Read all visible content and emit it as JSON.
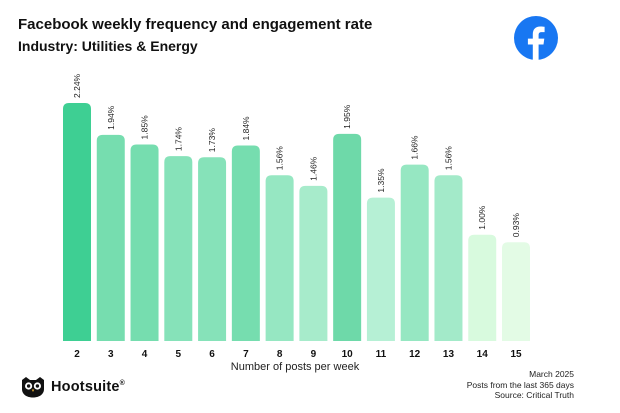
{
  "header": {
    "title": "Facebook weekly frequency and engagement rate",
    "subtitle": "Industry: Utilities & Energy",
    "logo_icon": "facebook-logo-icon",
    "logo_color": "#1877F2"
  },
  "chart_data": {
    "type": "bar",
    "title": "Facebook weekly frequency and engagement rate",
    "subtitle": "Industry: Utilities & Energy",
    "xlabel": "Number of posts per week",
    "ylabel": "",
    "categories": [
      "2",
      "3",
      "4",
      "5",
      "6",
      "7",
      "8",
      "9",
      "10",
      "11",
      "12",
      "13",
      "14",
      "15"
    ],
    "values": [
      2.24,
      1.94,
      1.85,
      1.74,
      1.73,
      1.84,
      1.56,
      1.46,
      1.95,
      1.35,
      1.66,
      1.56,
      1.0,
      0.93
    ],
    "labels": [
      "2.24%",
      "1.94%",
      "1.85%",
      "1.74%",
      "1.73%",
      "1.84%",
      "1.56%",
      "1.46%",
      "1.95%",
      "1.35%",
      "1.66%",
      "1.56%",
      "1.00%",
      "0.93%"
    ],
    "ylim": [
      0,
      2.24
    ],
    "grid": false,
    "colors": [
      "#3ECF93",
      "#76DDAF",
      "#76DDAF",
      "#86E2B9",
      "#86E2B9",
      "#76DDAF",
      "#96E7C2",
      "#A7EBCB",
      "#6ED9A9",
      "#B6F0D5",
      "#96E7C2",
      "#A3EAC9",
      "#D8FADE",
      "#E3FBE5"
    ]
  },
  "footer": {
    "date": "March 2025",
    "period": "Posts from the last 365 days",
    "source": "Source: Critical Truth"
  },
  "brand": {
    "name": "Hootsuite",
    "mark": "®",
    "icon": "owl-logo-icon"
  }
}
